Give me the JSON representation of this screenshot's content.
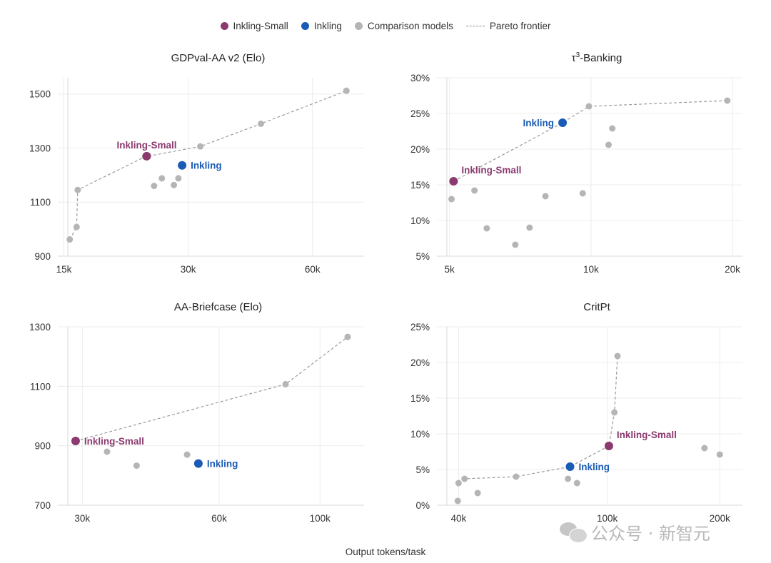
{
  "legend": {
    "items": [
      {
        "label": "Inkling-Small",
        "color": "#8b3a6f",
        "kind": "dot"
      },
      {
        "label": "Inkling",
        "color": "#1a5bb5",
        "kind": "dot"
      },
      {
        "label": "Comparison models",
        "color": "#b5b5b5",
        "kind": "dot"
      },
      {
        "label": "Pareto frontier",
        "color": "#8e8e8e",
        "kind": "dash"
      }
    ]
  },
  "x_axis_label": "Output tokens/task",
  "watermark": {
    "text": "公众号 · 新智元"
  },
  "colors": {
    "inkling_small": "#8b3a6f",
    "inkling": "#1a5bb5",
    "comparison": "#b5b5b5",
    "frontier": "#9a9a9a",
    "grid": "#ececec"
  },
  "chart_data": [
    {
      "type": "scatter",
      "title": "GDPval-AA v2 (Elo)",
      "x_scale": "log",
      "xlim": [
        14500,
        80000
      ],
      "ylim": [
        900,
        1560
      ],
      "x_ticks": [
        {
          "value": 15000,
          "label": "15k"
        },
        {
          "value": 30000,
          "label": "30k"
        },
        {
          "value": 60000,
          "label": "60k"
        }
      ],
      "y_ticks": [
        {
          "value": 900,
          "label": "900"
        },
        {
          "value": 1100,
          "label": "1100"
        },
        {
          "value": 1300,
          "label": "1300"
        },
        {
          "value": 1500,
          "label": "1500"
        }
      ],
      "comparison": [
        [
          15500,
          962
        ],
        [
          16100,
          1008
        ],
        [
          16200,
          1145
        ],
        [
          23600,
          1268
        ],
        [
          24800,
          1160
        ],
        [
          25900,
          1188
        ],
        [
          27700,
          1163
        ],
        [
          28400,
          1188
        ],
        [
          32100,
          1306
        ],
        [
          45000,
          1390
        ],
        [
          72500,
          1512
        ]
      ],
      "frontier": [
        [
          15500,
          962
        ],
        [
          16100,
          1008
        ],
        [
          16200,
          1145
        ],
        [
          23600,
          1268
        ],
        [
          32100,
          1306
        ],
        [
          45000,
          1390
        ],
        [
          72500,
          1512
        ]
      ],
      "inkling_small": {
        "x": 23800,
        "y": 1270,
        "label": "Inkling-Small",
        "label_pos": "above"
      },
      "inkling": {
        "x": 29000,
        "y": 1236,
        "label": "Inkling",
        "label_pos": "right"
      }
    },
    {
      "type": "scatter",
      "title": "τ³-Banking",
      "title_parts": [
        "τ",
        "3",
        "-Banking"
      ],
      "x_scale": "log",
      "xlim": [
        4700,
        21000
      ],
      "ylim": [
        5,
        30
      ],
      "y_format": "percent",
      "x_ticks": [
        {
          "value": 5000,
          "label": "5k"
        },
        {
          "value": 10000,
          "label": "10k"
        },
        {
          "value": 20000,
          "label": "20k"
        }
      ],
      "y_ticks": [
        {
          "value": 5,
          "label": "5%"
        },
        {
          "value": 10,
          "label": "10%"
        },
        {
          "value": 15,
          "label": "15%"
        },
        {
          "value": 20,
          "label": "20%"
        },
        {
          "value": 25,
          "label": "25%"
        },
        {
          "value": 30,
          "label": "30%"
        }
      ],
      "comparison": [
        [
          5050,
          13.0
        ],
        [
          5650,
          14.2
        ],
        [
          6000,
          8.9
        ],
        [
          6900,
          6.6
        ],
        [
          7400,
          9.0
        ],
        [
          8000,
          13.4
        ],
        [
          9600,
          13.8
        ],
        [
          9900,
          26.0
        ],
        [
          10900,
          20.6
        ],
        [
          11100,
          22.9
        ],
        [
          19500,
          26.8
        ]
      ],
      "frontier": [
        [
          5100,
          15.5
        ],
        [
          8700,
          23.7
        ],
        [
          9900,
          26.0
        ],
        [
          19500,
          26.8
        ]
      ],
      "inkling_small": {
        "x": 5100,
        "y": 15.5,
        "label": "Inkling-Small",
        "label_pos": "above-right"
      },
      "inkling": {
        "x": 8700,
        "y": 23.7,
        "label": "Inkling",
        "label_pos": "left"
      }
    },
    {
      "type": "scatter",
      "title": "AA-Briefcase (Elo)",
      "x_scale": "log",
      "xlim": [
        26500,
        125000
      ],
      "ylim": [
        700,
        1300
      ],
      "x_ticks": [
        {
          "value": 30000,
          "label": "30k"
        },
        {
          "value": 60000,
          "label": "60k"
        },
        {
          "value": 100000,
          "label": "100k"
        }
      ],
      "y_ticks": [
        {
          "value": 700,
          "label": "700"
        },
        {
          "value": 900,
          "label": "900"
        },
        {
          "value": 1100,
          "label": "1100"
        },
        {
          "value": 1300,
          "label": "1300"
        }
      ],
      "comparison": [
        [
          34000,
          880
        ],
        [
          39500,
          833
        ],
        [
          51000,
          870
        ],
        [
          84000,
          1107
        ],
        [
          115000,
          1266
        ]
      ],
      "frontier": [
        [
          29000,
          916
        ],
        [
          84000,
          1107
        ],
        [
          115000,
          1266
        ]
      ],
      "inkling_small": {
        "x": 29000,
        "y": 916,
        "label": "Inkling-Small",
        "label_pos": "right"
      },
      "inkling": {
        "x": 54000,
        "y": 840,
        "label": "Inkling",
        "label_pos": "right"
      }
    },
    {
      "type": "scatter",
      "title": "CritPt",
      "x_scale": "log",
      "xlim": [
        35000,
        230000
      ],
      "ylim": [
        0,
        25
      ],
      "y_format": "percent",
      "x_ticks": [
        {
          "value": 40000,
          "label": "40k"
        },
        {
          "value": 100000,
          "label": "100k"
        },
        {
          "value": 200000,
          "label": "200k"
        }
      ],
      "y_ticks": [
        {
          "value": 0,
          "label": "0%"
        },
        {
          "value": 5,
          "label": "5%"
        },
        {
          "value": 10,
          "label": "10%"
        },
        {
          "value": 15,
          "label": "15%"
        },
        {
          "value": 20,
          "label": "20%"
        },
        {
          "value": 25,
          "label": "25%"
        }
      ],
      "comparison": [
        [
          39800,
          0.6
        ],
        [
          40000,
          3.1
        ],
        [
          41500,
          3.7
        ],
        [
          45000,
          1.7
        ],
        [
          57000,
          4.0
        ],
        [
          78500,
          3.7
        ],
        [
          83000,
          3.1
        ],
        [
          104500,
          13.0
        ],
        [
          106500,
          20.9
        ],
        [
          182000,
          8.0
        ],
        [
          200000,
          7.1
        ]
      ],
      "frontier": [
        [
          40000,
          3.1
        ],
        [
          41500,
          3.7
        ],
        [
          57000,
          4.0
        ],
        [
          79500,
          5.4
        ],
        [
          101000,
          8.3
        ],
        [
          104500,
          13.0
        ],
        [
          106500,
          20.9
        ]
      ],
      "inkling_small": {
        "x": 101000,
        "y": 8.3,
        "label": "Inkling-Small",
        "label_pos": "above-right"
      },
      "inkling": {
        "x": 79500,
        "y": 5.4,
        "label": "Inkling",
        "label_pos": "right"
      }
    }
  ]
}
